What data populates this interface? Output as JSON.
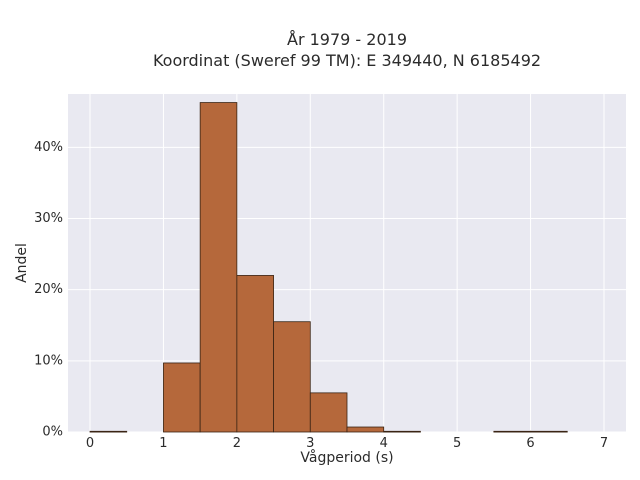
{
  "chart_data": {
    "type": "bar",
    "title_line1": "År 1979 - 2019",
    "title_line2": "Koordinat (Sweref 99 TM): E 349440, N 6185492",
    "xlabel": "Vågperiod (s)",
    "ylabel": "Andel",
    "xlim": [
      -0.3,
      7.3
    ],
    "ylim": [
      0,
      47.5
    ],
    "x_ticks": [
      0,
      1,
      2,
      3,
      4,
      5,
      6,
      7
    ],
    "y_ticks": [
      0,
      10,
      20,
      30,
      40
    ],
    "y_tick_labels": [
      "0%",
      "10%",
      "20%",
      "30%",
      "40%"
    ],
    "bin_width": 0.5,
    "bins": [
      {
        "x0": 0.0,
        "value": 0.1
      },
      {
        "x0": 0.5,
        "value": 0.0
      },
      {
        "x0": 1.0,
        "value": 9.7
      },
      {
        "x0": 1.5,
        "value": 46.3
      },
      {
        "x0": 2.0,
        "value": 22.0
      },
      {
        "x0": 2.5,
        "value": 15.5
      },
      {
        "x0": 3.0,
        "value": 5.5
      },
      {
        "x0": 3.5,
        "value": 0.7
      },
      {
        "x0": 4.0,
        "value": 0.1
      },
      {
        "x0": 4.5,
        "value": 0.0
      },
      {
        "x0": 5.0,
        "value": 0.0
      },
      {
        "x0": 5.5,
        "value": 0.1
      },
      {
        "x0": 6.0,
        "value": 0.1
      },
      {
        "x0": 6.5,
        "value": 0.0
      }
    ],
    "grid": true,
    "colors": {
      "bar_fill": "#b5683b",
      "bar_stroke": "#3a2414",
      "plot_background": "#e9e9f1",
      "grid": "#ffffff"
    }
  }
}
